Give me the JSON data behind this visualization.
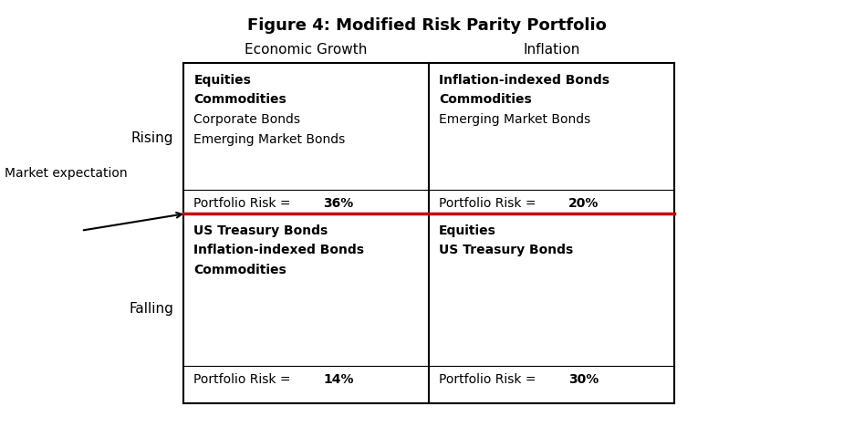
{
  "title": "Figure 4: Modified Risk Parity Portfolio",
  "col_headers": [
    "Economic Growth",
    "Inflation"
  ],
  "row_headers": [
    "Rising",
    "Falling"
  ],
  "market_expectation_label": "Market expectation",
  "cells": {
    "top_left": {
      "bold_lines": [
        "Equities",
        "Commodities"
      ],
      "normal_lines": [
        "Corporate Bonds",
        "Emerging Market Bonds"
      ],
      "risk": "36%"
    },
    "top_right": {
      "bold_lines": [
        "Inflation-indexed Bonds",
        "Commodities"
      ],
      "normal_lines": [
        "Emerging Market Bonds"
      ],
      "risk": "20%"
    },
    "bottom_left": {
      "bold_lines": [
        "US Treasury Bonds",
        "Inflation-indexed Bonds",
        "Commodities"
      ],
      "normal_lines": [],
      "risk": "14%"
    },
    "bottom_right": {
      "bold_lines": [
        "Equities",
        "US Treasury Bonds"
      ],
      "normal_lines": [],
      "risk": "30%"
    }
  },
  "red_line_color": "#cc0000",
  "GL": 0.215,
  "GR": 0.79,
  "GMX": 0.502,
  "GT": 0.148,
  "GB": 0.945,
  "GMY": 0.5,
  "title_fontsize": 13,
  "header_fontsize": 11,
  "cell_fontsize": 10,
  "row_label_fontsize": 11
}
